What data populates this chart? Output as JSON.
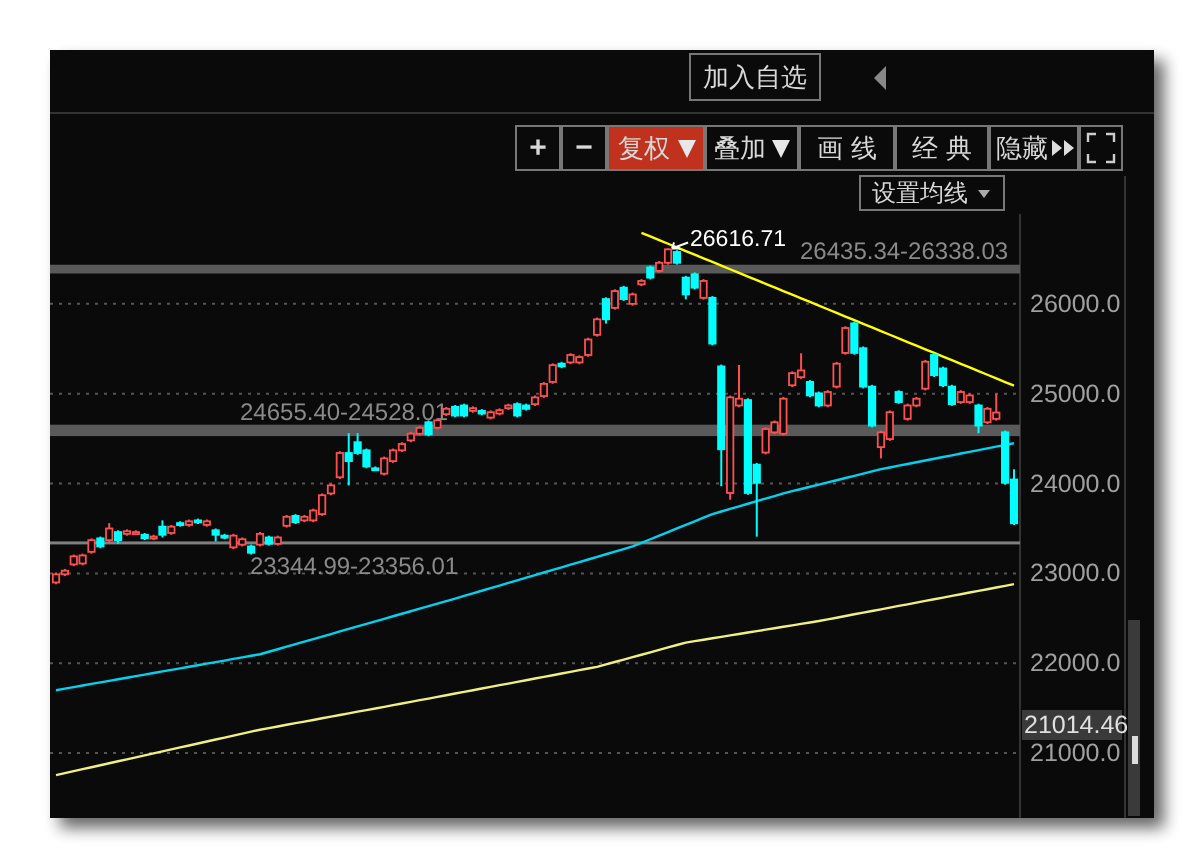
{
  "chart_data": {
    "type": "candlestick",
    "categories": [
      null,
      null,
      null,
      null,
      null,
      null,
      null,
      null,
      null,
      null,
      null,
      null,
      null,
      null,
      null,
      null,
      null,
      null,
      null,
      null,
      null,
      null,
      null,
      null,
      null,
      null,
      null,
      null,
      null,
      null,
      null,
      null,
      null,
      null,
      null,
      null,
      null,
      null,
      null,
      null,
      null,
      null,
      null,
      null,
      null,
      null,
      null,
      null,
      null,
      null,
      null,
      null,
      null,
      null,
      null,
      null,
      null,
      null,
      null,
      null,
      null,
      null,
      null,
      null,
      null,
      null,
      null,
      null,
      null,
      null,
      null,
      null,
      null,
      null,
      null,
      null,
      null,
      null,
      null,
      null,
      null,
      null,
      null,
      null,
      null,
      null,
      null,
      null,
      null,
      null,
      null,
      null,
      null,
      null,
      null,
      null,
      null,
      null,
      null,
      null,
      null,
      null,
      null,
      null,
      null,
      null,
      null,
      null,
      null
    ],
    "ohlc": [
      [
        22899,
        23009,
        22879,
        22989
      ],
      [
        22990,
        23050,
        22970,
        23030
      ],
      [
        23100,
        23210,
        23080,
        23190
      ],
      [
        23110,
        23220,
        23090,
        23200
      ],
      [
        23240,
        23390,
        23220,
        23370
      ],
      [
        23390,
        23410,
        23280,
        23300
      ],
      [
        23370,
        23560,
        23350,
        23500
      ],
      [
        23460,
        23480,
        23330,
        23370
      ],
      [
        23440,
        23490,
        23420,
        23470
      ],
      [
        23450,
        23480,
        23430,
        23460
      ],
      [
        23430,
        23450,
        23370,
        23390
      ],
      [
        23390,
        23430,
        23370,
        23410
      ],
      [
        23520,
        23590,
        23400,
        23430
      ],
      [
        23450,
        23540,
        23430,
        23520
      ],
      [
        23560,
        23580,
        23520,
        23540
      ],
      [
        23540,
        23600,
        23520,
        23580
      ],
      [
        23590,
        23610,
        23550,
        23570
      ],
      [
        23540,
        23600,
        23520,
        23580
      ],
      [
        23480,
        23500,
        23355,
        23430
      ],
      [
        23420,
        23440,
        23380,
        23400
      ],
      [
        23290,
        23440,
        23270,
        23420
      ],
      [
        23320,
        23400,
        23300,
        23380
      ],
      [
        23300,
        23320,
        23210,
        23230
      ],
      [
        23320,
        23460,
        23300,
        23440
      ],
      [
        23400,
        23420,
        23310,
        23330
      ],
      [
        23330,
        23420,
        23310,
        23400
      ],
      [
        23530,
        23650,
        23510,
        23630
      ],
      [
        23640,
        23660,
        23550,
        23570
      ],
      [
        23590,
        23650,
        23570,
        23630
      ],
      [
        23590,
        23720,
        23570,
        23700
      ],
      [
        23660,
        23890,
        23640,
        23870
      ],
      [
        23890,
        24000,
        23870,
        23980
      ],
      [
        24070,
        24360,
        24050,
        24340
      ],
      [
        24340,
        24560,
        23980,
        24250
      ],
      [
        24460,
        24560,
        24320,
        24340
      ],
      [
        24370,
        24390,
        24170,
        24190
      ],
      [
        24170,
        24190,
        24140,
        24160
      ],
      [
        24110,
        24300,
        24090,
        24280
      ],
      [
        24250,
        24390,
        24230,
        24370
      ],
      [
        24370,
        24460,
        24350,
        24440
      ],
      [
        24480,
        24575,
        24460,
        24555
      ],
      [
        24555,
        24640,
        24535,
        24620
      ],
      [
        24682,
        24702,
        24527,
        24547
      ],
      [
        24622,
        24724,
        24602,
        24704
      ],
      [
        24772,
        24852,
        24752,
        24832
      ],
      [
        24854,
        24874,
        24737,
        24757
      ],
      [
        24869,
        24889,
        24737,
        24757
      ],
      [
        24809,
        24859,
        24789,
        24839
      ],
      [
        24809,
        24829,
        24759,
        24779
      ],
      [
        24734,
        24814,
        24714,
        24794
      ],
      [
        24779,
        24837,
        24759,
        24817
      ],
      [
        24839,
        24889,
        24819,
        24869
      ],
      [
        24884,
        24904,
        24737,
        24757
      ],
      [
        24869,
        24889,
        24812,
        24832
      ],
      [
        24884,
        24979,
        24864,
        24959
      ],
      [
        24974,
        25129,
        24954,
        25109
      ],
      [
        25131,
        25338,
        25111,
        25318
      ],
      [
        25334,
        25354,
        25284,
        25304
      ],
      [
        25348,
        25451,
        25328,
        25431
      ],
      [
        25348,
        25428,
        25328,
        25408
      ],
      [
        25431,
        25623,
        25411,
        25603
      ],
      [
        25655,
        25848,
        25635,
        25828
      ],
      [
        26053,
        26073,
        25780,
        25828
      ],
      [
        25955,
        26162,
        25935,
        26142
      ],
      [
        26180,
        26200,
        26033,
        26053
      ],
      [
        26000,
        26125,
        25980,
        26105
      ],
      [
        26217,
        26275,
        26197,
        26255
      ],
      [
        26405,
        26425,
        26272,
        26292
      ],
      [
        26367,
        26477,
        26347,
        26457
      ],
      [
        26457,
        26616.71,
        26437,
        26607
      ],
      [
        26577,
        26597,
        26437,
        26457
      ],
      [
        26292,
        26312,
        26050,
        26105
      ],
      [
        26330,
        26350,
        26160,
        26180
      ],
      [
        26067,
        26275,
        26047,
        26255
      ],
      [
        26067,
        26087,
        25538,
        25558
      ],
      [
        25304,
        25324,
        23970,
        24382
      ],
      [
        23895,
        24979,
        23820,
        24959
      ],
      [
        24869,
        25320,
        24849,
        24944
      ],
      [
        24929,
        24949,
        23875,
        23895
      ],
      [
        24210,
        24230,
        23409,
        24008
      ],
      [
        24345,
        24627,
        24325,
        24607
      ],
      [
        24570,
        24702,
        24550,
        24682
      ],
      [
        24555,
        24964,
        24535,
        24944
      ],
      [
        25094,
        25249,
        25074,
        25229
      ],
      [
        25184,
        25450,
        25164,
        25259
      ],
      [
        25131,
        25151,
        24961,
        24981
      ],
      [
        25004,
        25024,
        24849,
        24869
      ],
      [
        24869,
        25039,
        24849,
        25019
      ],
      [
        25079,
        25354,
        25059,
        25334
      ],
      [
        25454,
        25751,
        25434,
        25731
      ],
      [
        25783,
        25803,
        25434,
        25454
      ],
      [
        25506,
        25526,
        25059,
        25079
      ],
      [
        25079,
        25099,
        24625,
        24645
      ],
      [
        24405,
        24590,
        24280,
        24570
      ],
      [
        24495,
        24814,
        24475,
        24794
      ],
      [
        25019,
        25039,
        24887,
        24907
      ],
      [
        24720,
        24889,
        24700,
        24869
      ],
      [
        24869,
        24964,
        24849,
        24944
      ],
      [
        25056,
        25376,
        25036,
        25356
      ],
      [
        25431,
        25451,
        25186,
        25206
      ],
      [
        25281,
        25301,
        25074,
        25094
      ],
      [
        25079,
        25099,
        24864,
        24884
      ],
      [
        24907,
        25039,
        24887,
        25019
      ],
      [
        24907,
        25001,
        24887,
        24981
      ],
      [
        24869,
        24889,
        24560,
        24645
      ],
      [
        24682,
        24852,
        24662,
        24832
      ],
      [
        24720,
        25000,
        24700,
        24790
      ],
      [
        24570,
        24590,
        23988,
        24008
      ],
      [
        24045,
        24160,
        23538,
        23558
      ]
    ],
    "series": [
      {
        "type": "line",
        "color": "#00d2f0",
        "values": [
          21700,
          21717,
          21735,
          21752,
          21770,
          21787,
          21804,
          21822,
          21839,
          21857,
          21874,
          21891,
          21909,
          21926,
          21943,
          21961,
          21978,
          21996,
          22013,
          22030,
          22048,
          22065,
          22083,
          22100,
          22128,
          22156,
          22185,
          22213,
          22241,
          22269,
          22297,
          22325,
          22354,
          22382,
          22410,
          22438,
          22466,
          22494,
          22523,
          22551,
          22579,
          22607,
          22635,
          22664,
          22692,
          22720,
          22749,
          22778,
          22807,
          22836,
          22865,
          22894,
          22923,
          22952,
          22981,
          23010,
          23039,
          23068,
          23097,
          23126,
          23155,
          23184,
          23213,
          23242,
          23271,
          23300,
          23340,
          23380,
          23420,
          23460,
          23500,
          23540,
          23580,
          23620,
          23660,
          23689,
          23718,
          23746,
          23775,
          23804,
          23833,
          23861,
          23890,
          23915,
          23939,
          23964,
          23988,
          24013,
          24037,
          24062,
          24086,
          24111,
          24135,
          24160,
          24179,
          24199,
          24218,
          24237,
          24256,
          24276,
          24295,
          24314,
          24334,
          24353,
          24372,
          24391,
          24411,
          24430,
          24449
        ]
      },
      {
        "type": "line",
        "color": "#f0f080",
        "values": [
          20755,
          20777,
          20799,
          20821,
          20843,
          20865,
          20887,
          20909,
          20931,
          20953,
          20975,
          20997,
          21019,
          21041,
          21063,
          21085,
          21107,
          21129,
          21151,
          21173,
          21195,
          21217,
          21239,
          21260,
          21278,
          21296,
          21315,
          21333,
          21351,
          21369,
          21388,
          21406,
          21424,
          21442,
          21461,
          21479,
          21497,
          21515,
          21534,
          21552,
          21570,
          21589,
          21607,
          21626,
          21644,
          21663,
          21681,
          21700,
          21719,
          21737,
          21756,
          21774,
          21793,
          21811,
          21830,
          21849,
          21867,
          21886,
          21904,
          21923,
          21941,
          21960,
          21987,
          22014,
          22041,
          22068,
          22095,
          22122,
          22149,
          22176,
          22203,
          22230,
          22246,
          22262,
          22278,
          22294,
          22310,
          22326,
          22342,
          22358,
          22374,
          22390,
          22406,
          22422,
          22438,
          22454,
          22470,
          22489,
          22507,
          22526,
          22545,
          22563,
          22582,
          22600,
          22619,
          22638,
          22656,
          22675,
          22694,
          22712,
          22731,
          22750,
          22768,
          22787,
          22805,
          22824,
          22843,
          22861,
          22880
        ]
      },
      {
        "type": "line",
        "color": "#ffff00",
        "values": [
          null,
          null,
          null,
          null,
          null,
          null,
          null,
          null,
          null,
          null,
          null,
          null,
          null,
          null,
          null,
          null,
          null,
          null,
          null,
          null,
          null,
          null,
          null,
          null,
          null,
          null,
          null,
          null,
          null,
          null,
          null,
          null,
          null,
          null,
          null,
          null,
          null,
          null,
          null,
          null,
          null,
          null,
          null,
          null,
          null,
          null,
          null,
          null,
          null,
          null,
          null,
          null,
          null,
          null,
          null,
          null,
          null,
          null,
          null,
          null,
          null,
          null,
          null,
          null,
          null,
          null,
          26790,
          26750,
          26709,
          26669,
          26628,
          26588,
          26547,
          26507,
          26466,
          26426,
          26385,
          26345,
          26304,
          26264,
          26223,
          26183,
          26142,
          26102,
          26061,
          26021,
          25980,
          25940,
          25899,
          25859,
          25818,
          25778,
          25737,
          25697,
          25656,
          25616,
          25575,
          25535,
          25494,
          25454,
          25413,
          25373,
          25332,
          25292,
          25251,
          25211,
          25170,
          25130,
          25089
        ]
      }
    ],
    "ylim": [
      20300,
      27000
    ],
    "yticks": [
      {
        "value": 21000,
        "label": "21000.0"
      },
      {
        "value": 22000,
        "label": "22000.0"
      },
      {
        "value": 23000,
        "label": "23000.0"
      },
      {
        "value": 24000,
        "label": "24000.0"
      },
      {
        "value": 25000,
        "label": "25000.0"
      },
      {
        "value": 26000,
        "label": "26000.0"
      }
    ],
    "grid": "y",
    "tick_labels": "y",
    "bands": [
      {
        "axis": "y",
        "from": 26338.03,
        "to": 26435.34,
        "label": "26435.34-26338.03",
        "color": "#5a5a5a"
      },
      {
        "axis": "y",
        "from": 24528.01,
        "to": 24655.4,
        "label": "24655.40-24528.01",
        "color": "#5a5a5a"
      },
      {
        "axis": "y",
        "from": 23344.99,
        "to": 23356.01,
        "label": "23344.99-23356.01",
        "color": "#808080"
      }
    ],
    "annotations": [
      "加入自选",
      "+",
      "−",
      "复权",
      "叠加",
      "画 线",
      "经 典",
      "隐藏",
      "设置均线",
      "26616.71",
      "21014.46"
    ]
  }
}
